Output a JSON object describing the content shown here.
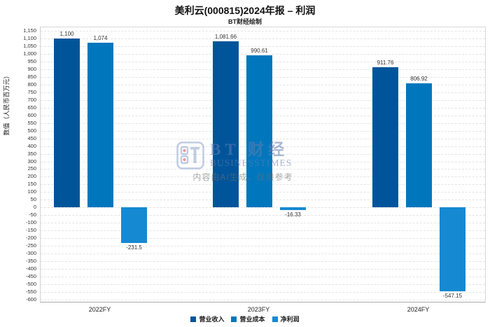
{
  "header": {
    "title": "美利云(000815)2024年报 – 利润",
    "subtitle": "BT财经绘制"
  },
  "chart_data": {
    "type": "bar",
    "categories": [
      "2022FY",
      "2023FY",
      "2024FY"
    ],
    "series": [
      {
        "name": "营业收入",
        "color": "#00559a",
        "values": [
          1100,
          1081.66,
          911.76
        ],
        "labels": [
          "1,100",
          "1,081.66",
          "911.76"
        ]
      },
      {
        "name": "营业成本",
        "color": "#0077bd",
        "values": [
          1074,
          990.61,
          806.92
        ],
        "labels": [
          "1,074",
          "990.61",
          "806.92"
        ]
      },
      {
        "name": "净利润",
        "color": "#1589d2",
        "values": [
          -231.5,
          -16.33,
          -547.15
        ],
        "labels": [
          "-231.5",
          "-16.33",
          "-547.15"
        ]
      }
    ],
    "title": "美利云(000815)2024年报 – 利润",
    "xlabel": "",
    "ylabel": "数值（人民币百万元）",
    "ylim": [
      -600,
      1150
    ],
    "ytick_step": 50,
    "grid": true,
    "legend_position": "bottom"
  },
  "watermark": {
    "brand": "BT 财经",
    "brand_sub": "BUSINESSTIMES",
    "disclaimer": "内容由AI生成，仅供参考"
  },
  "colors": {
    "grid": "#e4e4e4",
    "axis": "#a9a9a9",
    "logo_blue": "#8ea3cc",
    "logo_red": "#d05050"
  }
}
